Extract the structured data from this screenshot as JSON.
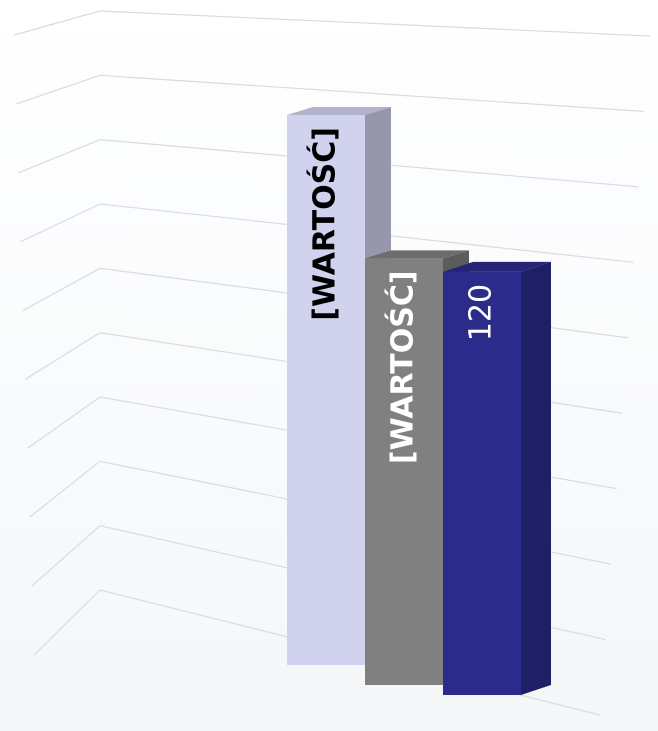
{
  "chart_data": {
    "type": "bar",
    "subtype": "3d-column",
    "title": "",
    "xlabel": "",
    "ylabel": "",
    "categories": [
      ""
    ],
    "ylim": [
      0,
      180
    ],
    "grid": true,
    "legend": "none",
    "series": [
      {
        "color": "#d0d2ee",
        "value": 156,
        "data_label": "[WARTOŚĆ]",
        "label_color": "#000000",
        "label_bold": true
      },
      {
        "color": "#808080",
        "value": 121,
        "data_label": "[WARTOŚĆ]",
        "label_color": "#ffffff",
        "label_bold": true
      },
      {
        "color": "#2b2b8c",
        "value": 120,
        "data_label": "120",
        "label_color": "#ffffff",
        "label_bold": false
      }
    ]
  }
}
